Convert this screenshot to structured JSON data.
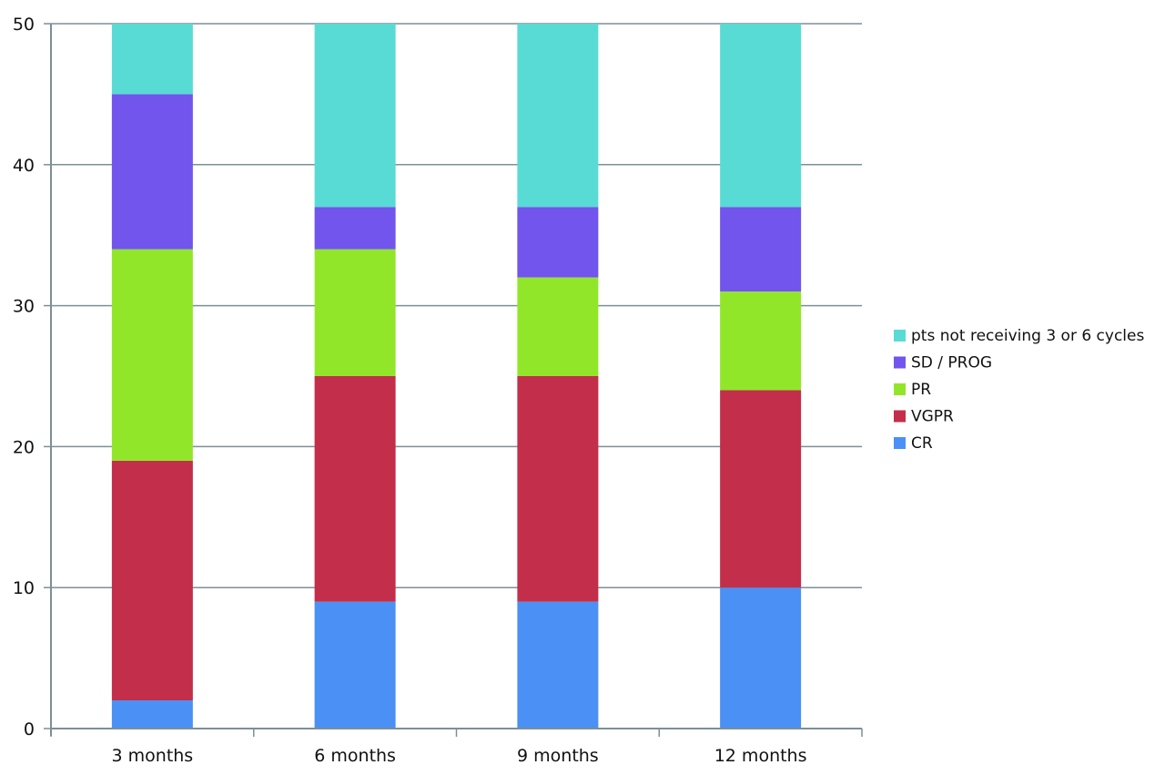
{
  "chart_data": {
    "type": "bar",
    "stacked": true,
    "title": "",
    "xlabel": "",
    "ylabel": "",
    "ylim": [
      0,
      50
    ],
    "yticks": [
      0,
      10,
      20,
      30,
      40,
      50
    ],
    "grid": true,
    "legend_position": "right",
    "categories": [
      "3 months",
      "6 months",
      "9 months",
      "12 months"
    ],
    "series": [
      {
        "name": "CR",
        "color": "#4a90f5",
        "values": [
          2,
          9,
          9,
          10
        ]
      },
      {
        "name": "VGPR",
        "color": "#c32e4a",
        "values": [
          17,
          16,
          16,
          14
        ]
      },
      {
        "name": "PR",
        "color": "#92e62a",
        "values": [
          15,
          9,
          7,
          7
        ]
      },
      {
        "name": "SD / PROG",
        "color": "#7155ec",
        "values": [
          11,
          3,
          5,
          6
        ]
      },
      {
        "name": "pts not receiving 3 or 6 cycles",
        "color": "#58dbd5",
        "values": [
          5,
          13,
          13,
          13
        ]
      }
    ],
    "axis_color": "#7d8f96"
  }
}
